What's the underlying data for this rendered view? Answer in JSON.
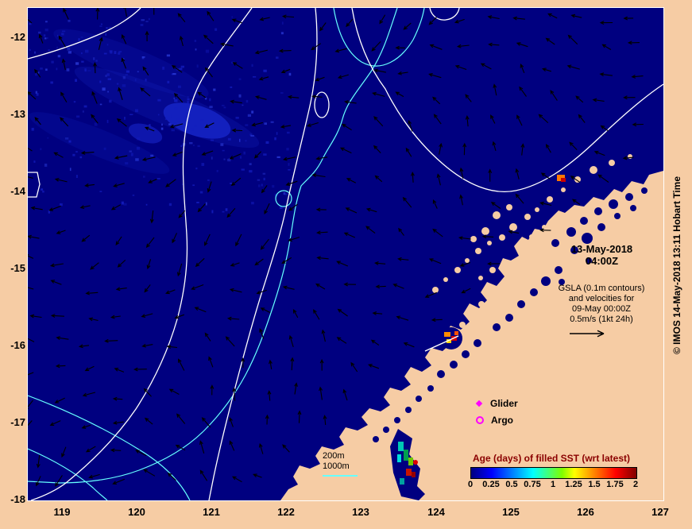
{
  "map": {
    "date_line1": "13-May-2018",
    "date_line2": "04:00Z",
    "gsla_lines": [
      "GSLA (0.1m contours)",
      "and velocities for",
      "09-May 00:00Z",
      "0.5m/s (1kt 24h)"
    ],
    "legend": {
      "glider": "Glider",
      "argo": "Argo"
    },
    "depth": {
      "d200": "200m",
      "d1000": "1000m"
    },
    "colorbar": {
      "title": "Age (days) of filled SST (wrt latest)",
      "ticks": [
        "0",
        "0.25",
        "0.5",
        "0.75",
        "1",
        "1.25",
        "1.5",
        "1.75",
        "2"
      ]
    },
    "credit": "© IMOS 14-May-2018 13:11 Hobart Time",
    "axis": {
      "lon": [
        "119",
        "120",
        "121",
        "122",
        "123",
        "124",
        "125",
        "126",
        "127"
      ],
      "lat": [
        "-12",
        "-13",
        "-14",
        "-15",
        "-16",
        "-17",
        "-18"
      ]
    },
    "colors": {
      "ocean": "#000080",
      "land": "#F6CCA4",
      "gsla_contour": "#FFFFFF",
      "depth_contour": "#66FFFF",
      "velocity_arrows": "#000000",
      "marker": "#FF00FF",
      "colorbar_title": "#8B0000"
    }
  }
}
